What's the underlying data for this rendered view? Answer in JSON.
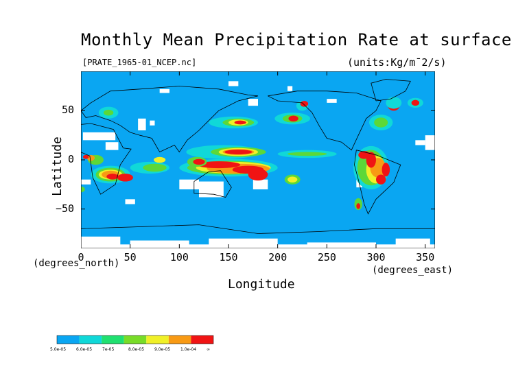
{
  "title": "Monthly Mean Precipitation Rate at surface",
  "file_label": "[PRATE_1965-01_NCEP.nc]",
  "units": "(units:Kg/m¯2/s)",
  "y_axis": {
    "label": "Latitude",
    "unit_label": "(degrees_north)",
    "ticks": [
      "50",
      "0",
      "−50"
    ],
    "tick_values": [
      50,
      0,
      -50
    ],
    "range": [
      -90,
      90
    ]
  },
  "x_axis": {
    "label": "Longitude",
    "unit_label": "(degrees_east)",
    "ticks": [
      "0",
      "50",
      "100",
      "150",
      "200",
      "250",
      "300",
      "350"
    ],
    "tick_values": [
      0,
      50,
      100,
      150,
      200,
      250,
      300,
      350
    ],
    "range": [
      0,
      360
    ]
  },
  "colorbar": {
    "labels": [
      "5.0e-05",
      "6.0e-05",
      "7e-05",
      "8.0e-05",
      "9.0e-05",
      "1.0e-04",
      "∞"
    ],
    "colors": [
      "#0aa6f2",
      "#10d8d8",
      "#20e070",
      "#78dc28",
      "#f0f028",
      "#f89a14",
      "#f01414"
    ]
  },
  "map_colors": {
    "ocean": "#0aa6f2",
    "missing": "#ffffff",
    "cyan": "#10d8d8",
    "green": "#5cd838",
    "yellow": "#f0f028",
    "orange": "#f89a14",
    "red": "#f01414",
    "coast": "#000000"
  }
}
